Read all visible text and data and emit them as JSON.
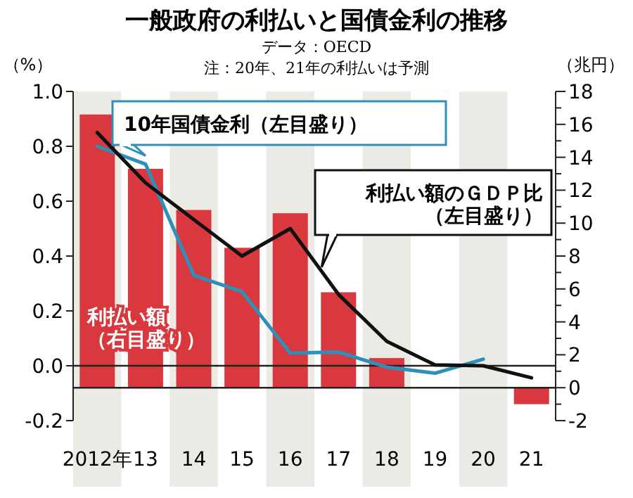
{
  "chart_data": {
    "type": "bar",
    "title": "一般政府の利払いと国債金利の推移",
    "subtitle": "データ：OECD",
    "annotations": [
      "注：20年、21年の利払いは予測"
    ],
    "ylabel": "（%）",
    "y2label": "（兆円）",
    "categories": [
      "2012年",
      "13",
      "14",
      "15",
      "16",
      "17",
      "18",
      "19",
      "20",
      "21"
    ],
    "series": [
      {
        "name": "利払い額（右目盛り）",
        "axis": "y2",
        "color": "#d9383f",
        "values": [
          16.6,
          13.3,
          10.8,
          8.5,
          10.6,
          5.8,
          1.8,
          null,
          null,
          -1.0
        ]
      },
      {
        "name": "10年国債金利（左目盛り）",
        "type": "line",
        "color": "#2e8fb8",
        "values": [
          0.8,
          0.735,
          0.33,
          0.27,
          0.046,
          0.05,
          -0.005,
          -0.027,
          0.024,
          null
        ]
      },
      {
        "name": "利払い額のＧＤＰ比（左目盛り）",
        "type": "line",
        "color": "#111111",
        "values": [
          0.85,
          0.667,
          0.533,
          0.4,
          0.5,
          0.26,
          0.089,
          0.003,
          0.0,
          -0.044
        ]
      }
    ],
    "ylim": [
      -0.2,
      1.0
    ],
    "yticks": [
      {
        "value": 1.0,
        "label": "1.0"
      },
      0.8,
      0.6,
      0.4,
      0.2,
      {
        "value": 0,
        "label": "0.0"
      },
      -0.2
    ],
    "y2lim": [
      -2,
      18
    ],
    "y2ticks": [
      18,
      {
        "value": 17,
        "label": null
      },
      16,
      {
        "value": 15,
        "label": null
      },
      14,
      {
        "value": 13,
        "label": null
      },
      12,
      {
        "value": 11,
        "label": null
      },
      10,
      {
        "value": 9,
        "label": null
      },
      8,
      {
        "value": 7,
        "label": null
      },
      6,
      {
        "value": 5,
        "label": null
      },
      4,
      {
        "value": 3,
        "label": null
      },
      2,
      {
        "value": 1,
        "label": null
      },
      0,
      {
        "value": -1,
        "label": null
      },
      -2
    ],
    "bands": [
      {
        "axis": "x",
        "from": "2012年",
        "to": "2012年",
        "color": "#ebebe6"
      },
      {
        "axis": "x",
        "from": "14",
        "to": "14",
        "color": "#ebebe6"
      },
      {
        "axis": "x",
        "from": "16",
        "to": "16",
        "color": "#ebebe6"
      },
      {
        "axis": "x",
        "from": "18",
        "to": "18",
        "color": "#ebebe6"
      },
      {
        "axis": "x",
        "from": "20",
        "to": "20",
        "color": "#ebebe6"
      }
    ]
  }
}
